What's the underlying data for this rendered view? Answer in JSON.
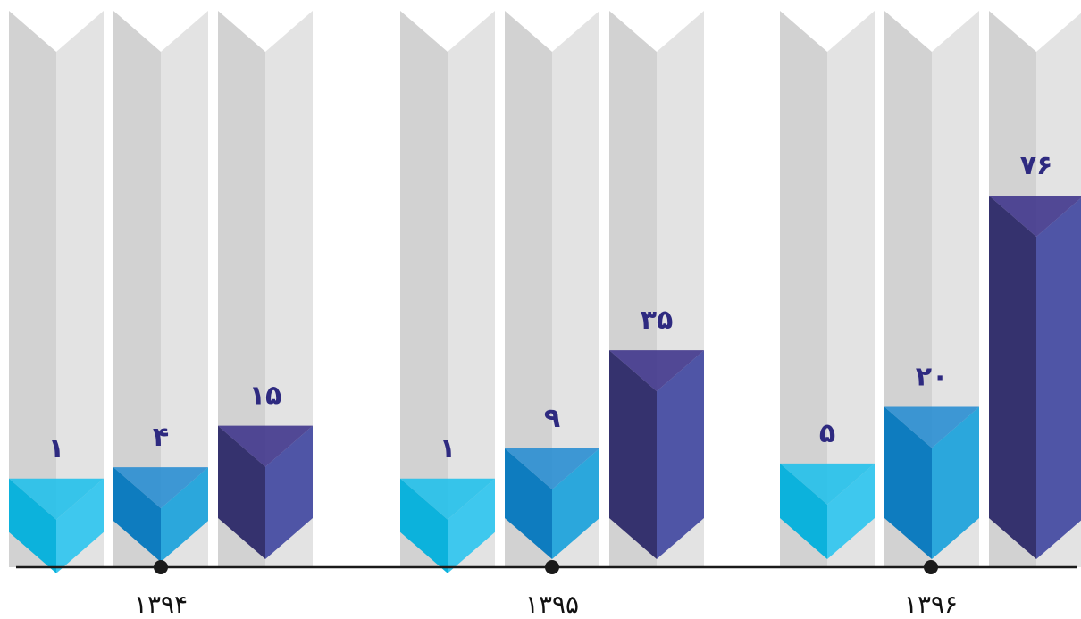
{
  "chart_data": {
    "type": "bar",
    "categories": [
      "۱۳۹۴",
      "۱۳۹۵",
      "۱۳۹۶"
    ],
    "series": [
      {
        "values": [
          1,
          1,
          5
        ],
        "labels": [
          "۱",
          "۱",
          "۵"
        ],
        "color": "#22c0ea"
      },
      {
        "values": [
          4,
          9,
          20
        ],
        "labels": [
          "۴",
          "۹",
          "۲۰"
        ],
        "color": "#1e8fd2"
      },
      {
        "values": [
          15,
          35,
          76
        ],
        "labels": [
          "۱۵",
          "۳۵",
          "۷۶"
        ],
        "color": "#3d3d8f"
      }
    ],
    "grid": false,
    "legend": "none"
  }
}
